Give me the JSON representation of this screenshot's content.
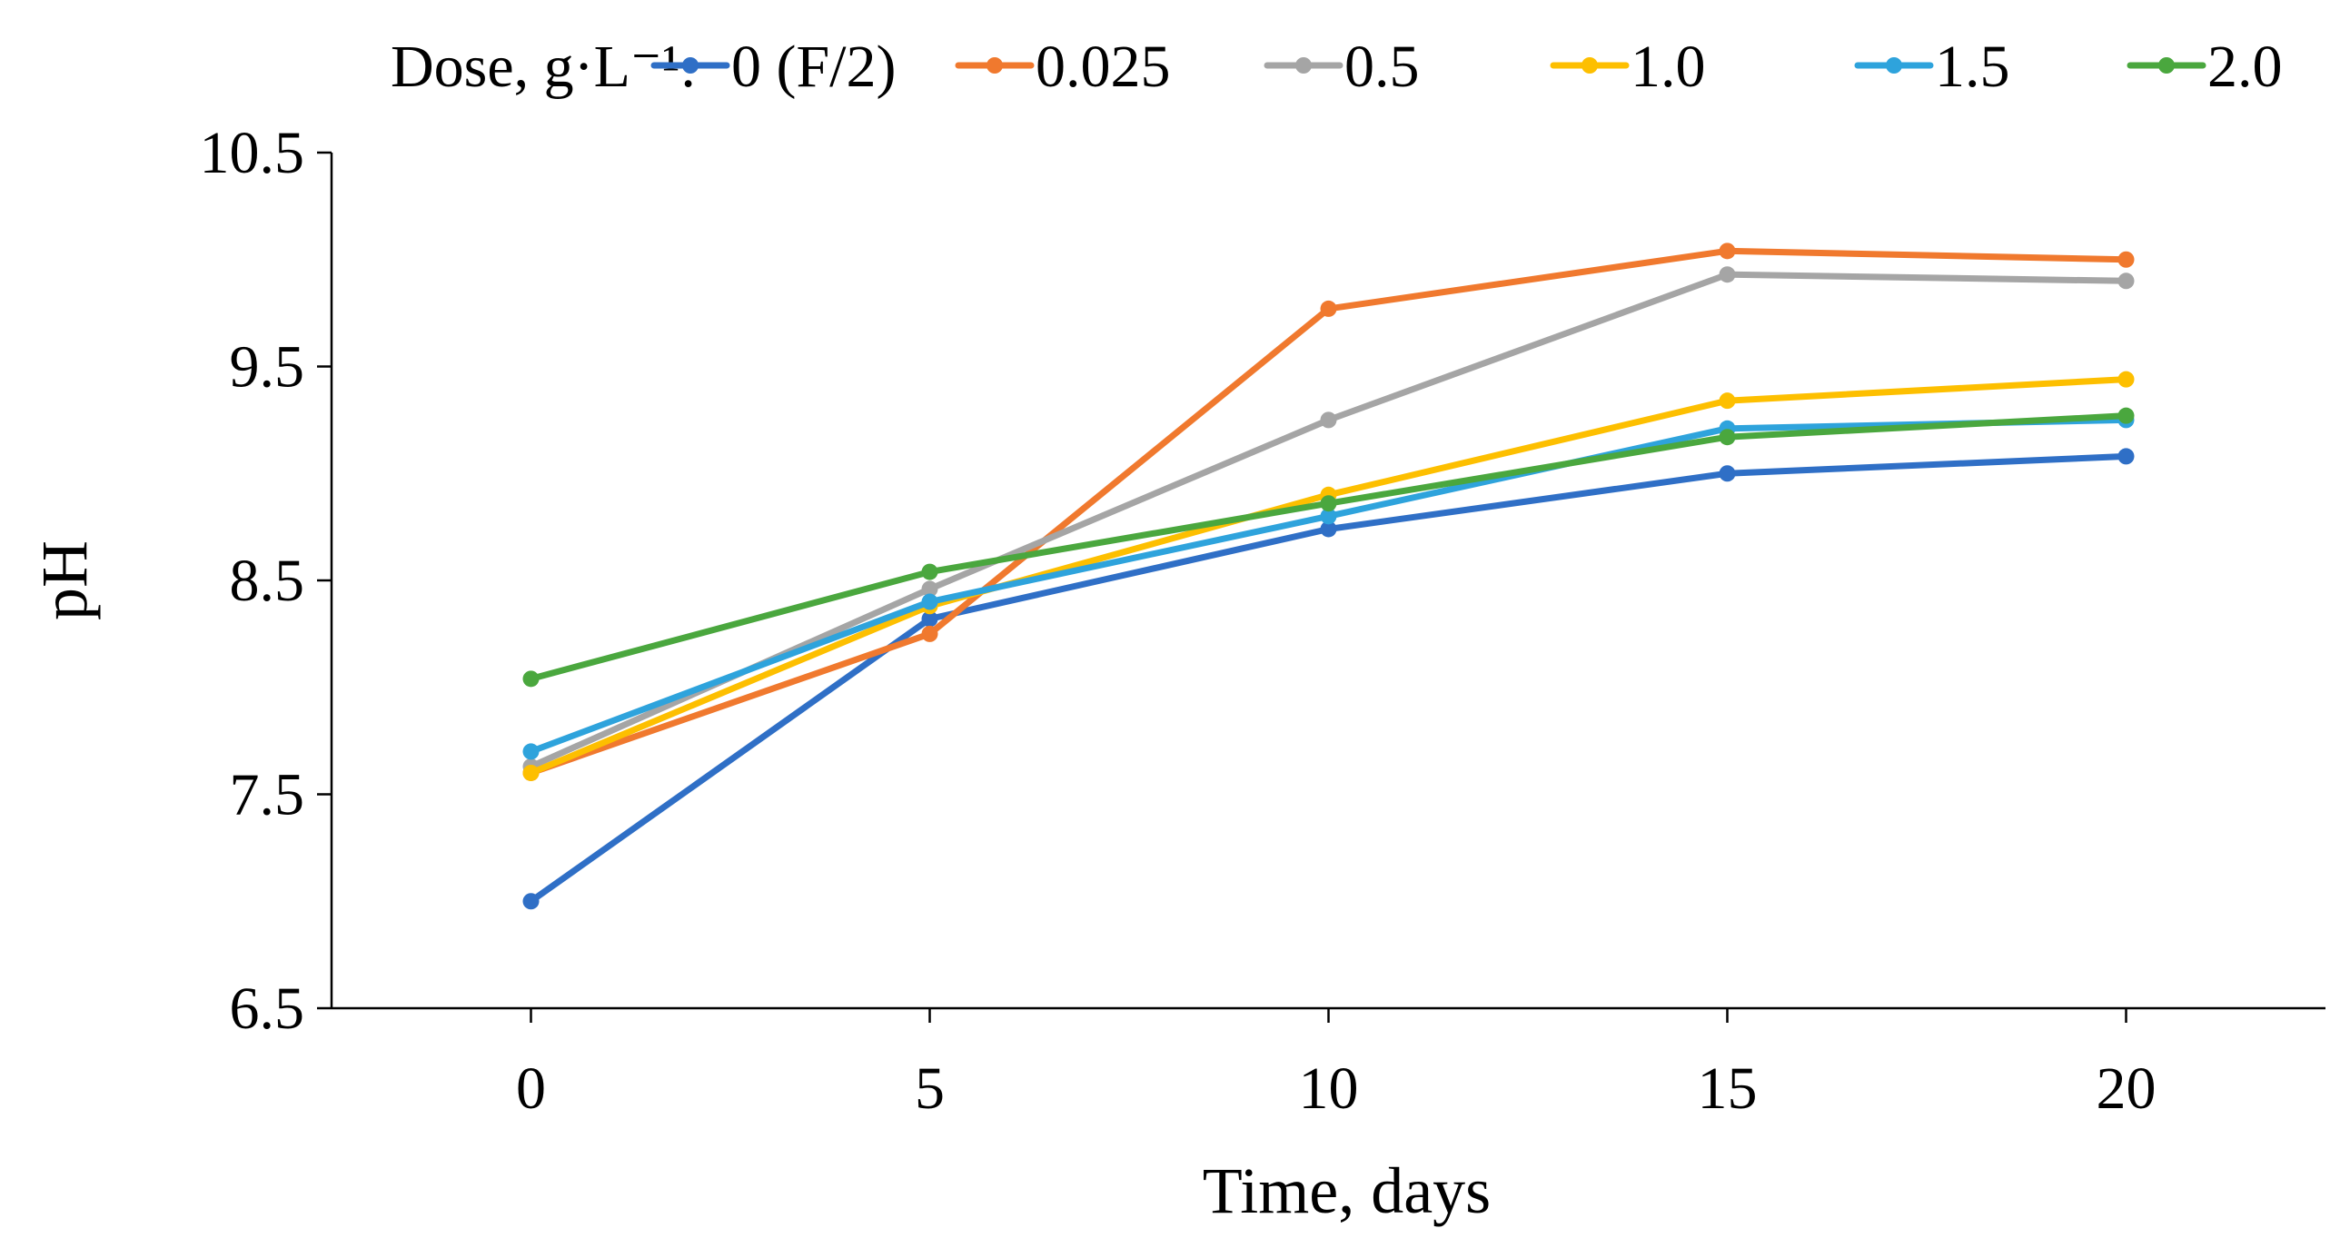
{
  "chart_data": {
    "type": "line",
    "xlabel": "Time, days",
    "ylabel": "pH",
    "x": [
      0,
      5,
      10,
      15,
      20
    ],
    "xticks": [
      "0",
      "5",
      "10",
      "15",
      "20"
    ],
    "xlim": [
      -2.5,
      22.5
    ],
    "ylim": [
      6.5,
      10.5
    ],
    "yticks": [
      "6.5",
      "7.5",
      "8.5",
      "9.5",
      "10.5"
    ],
    "legend_title": "Dose, g·L⁻¹:",
    "legend_position": "top",
    "grid": false,
    "series": [
      {
        "name": "0 (F/2)",
        "color": "#2f6fc6",
        "values": [
          7.0,
          8.32,
          8.74,
          9.0,
          9.08
        ]
      },
      {
        "name": "0.025",
        "color": "#f0792e",
        "values": [
          7.6,
          8.25,
          9.77,
          10.04,
          10.0
        ]
      },
      {
        "name": "0.5",
        "color": "#a5a5a5",
        "values": [
          7.63,
          8.46,
          9.25,
          9.93,
          9.9
        ]
      },
      {
        "name": "1.0",
        "color": "#fdbf00",
        "values": [
          7.6,
          8.38,
          8.9,
          9.34,
          9.44
        ]
      },
      {
        "name": "1.5",
        "color": "#2ea3dc",
        "values": [
          7.7,
          8.4,
          8.8,
          9.21,
          9.25
        ]
      },
      {
        "name": "2.0",
        "color": "#4aa73e",
        "values": [
          8.04,
          8.54,
          8.86,
          9.17,
          9.27
        ]
      }
    ]
  }
}
